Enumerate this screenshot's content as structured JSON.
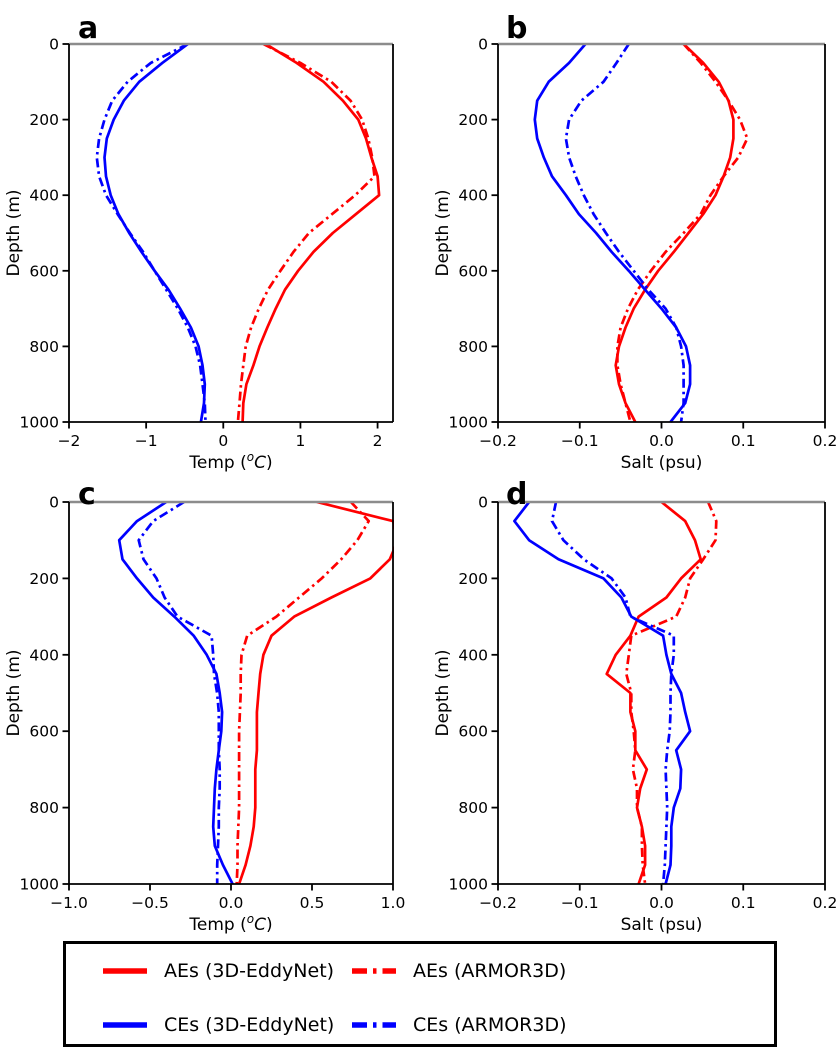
{
  "figure": {
    "background": "#ffffff",
    "colors": {
      "ae": "#ff0000",
      "ce": "#0000ff",
      "surface_line": "#8c8c8c",
      "spine": "#000000"
    },
    "legend": {
      "entries": [
        {
          "label": "AEs (3D-EddyNet)",
          "color": "#ff0000",
          "style": "solid"
        },
        {
          "label": "AEs (ARMOR3D)",
          "color": "#ff0000",
          "style": "dashdot"
        },
        {
          "label": "CEs (3D-EddyNet)",
          "color": "#0000ff",
          "style": "solid"
        },
        {
          "label": "CEs (ARMOR3D)",
          "color": "#0000ff",
          "style": "dashdot"
        }
      ]
    }
  },
  "chart_data": [
    {
      "panel": "a",
      "type": "line",
      "xlabel": "Temp (°C)",
      "xlabel_math": {
        "prefix": "Temp (",
        "sup": "o",
        "italic": "C",
        "suffix": ")"
      },
      "ylabel": "Depth (m)",
      "xlim": [
        -2.0,
        2.2
      ],
      "ylim": [
        0,
        1000
      ],
      "y_inverted": true,
      "grid": false,
      "xtick_values": [
        -2,
        -1,
        0,
        1,
        2
      ],
      "xtick_labels": [
        "−2",
        "−1",
        "0",
        "1",
        "2"
      ],
      "ytick_values": [
        0,
        200,
        400,
        600,
        800,
        1000
      ],
      "ytick_labels": [
        "0",
        "200",
        "400",
        "600",
        "800",
        "1000"
      ],
      "depths": [
        0,
        50,
        100,
        150,
        200,
        250,
        300,
        350,
        400,
        450,
        500,
        550,
        600,
        650,
        700,
        750,
        800,
        850,
        900,
        950,
        1000
      ],
      "series": [
        {
          "name": "AEs (3D-EddyNet)",
          "color": "#ff0000",
          "style": "solid",
          "values": [
            0.55,
            0.95,
            1.3,
            1.55,
            1.75,
            1.85,
            1.92,
            2.0,
            2.02,
            1.72,
            1.42,
            1.17,
            0.97,
            0.8,
            0.68,
            0.57,
            0.47,
            0.39,
            0.3,
            0.26,
            0.25
          ]
        },
        {
          "name": "AEs (ARMOR3D)",
          "color": "#ff0000",
          "style": "dashdot",
          "values": [
            0.52,
            1.0,
            1.4,
            1.65,
            1.8,
            1.88,
            1.93,
            1.96,
            1.71,
            1.41,
            1.11,
            0.91,
            0.74,
            0.58,
            0.46,
            0.36,
            0.29,
            0.26,
            0.23,
            0.21,
            0.19
          ]
        },
        {
          "name": "CEs (3D-EddyNet)",
          "color": "#0000ff",
          "style": "solid",
          "values": [
            -0.46,
            -0.79,
            -1.09,
            -1.29,
            -1.42,
            -1.51,
            -1.54,
            -1.52,
            -1.46,
            -1.36,
            -1.22,
            -1.06,
            -0.89,
            -0.71,
            -0.56,
            -0.42,
            -0.32,
            -0.27,
            -0.24,
            -0.25,
            -0.29
          ]
        },
        {
          "name": "CEs (ARMOR3D)",
          "color": "#0000ff",
          "style": "dashdot",
          "values": [
            -0.46,
            -0.94,
            -1.24,
            -1.44,
            -1.54,
            -1.61,
            -1.64,
            -1.61,
            -1.52,
            -1.37,
            -1.21,
            -1.04,
            -0.89,
            -0.74,
            -0.59,
            -0.46,
            -0.36,
            -0.3,
            -0.27,
            -0.24,
            -0.23
          ]
        }
      ]
    },
    {
      "panel": "b",
      "type": "line",
      "xlabel": "Salt (psu)",
      "ylabel": "Depth (m)",
      "xlim": [
        -0.2,
        0.2
      ],
      "ylim": [
        0,
        1000
      ],
      "y_inverted": true,
      "grid": false,
      "xtick_values": [
        -0.2,
        -0.1,
        0.0,
        0.1,
        0.2
      ],
      "xtick_labels": [
        "−0.2",
        "−0.1",
        "0.0",
        "0.1",
        "0.2"
      ],
      "ytick_values": [
        0,
        200,
        400,
        600,
        800,
        1000
      ],
      "ytick_labels": [
        "0",
        "200",
        "400",
        "600",
        "800",
        "1000"
      ],
      "depths": [
        0,
        50,
        100,
        150,
        200,
        250,
        300,
        350,
        400,
        450,
        500,
        550,
        600,
        650,
        700,
        750,
        800,
        850,
        900,
        950,
        1000
      ],
      "series": [
        {
          "name": "AEs (3D-EddyNet)",
          "color": "#ff0000",
          "style": "solid",
          "values": [
            0.027,
            0.051,
            0.07,
            0.082,
            0.088,
            0.088,
            0.084,
            0.076,
            0.066,
            0.051,
            0.033,
            0.015,
            -0.004,
            -0.02,
            -0.034,
            -0.044,
            -0.052,
            -0.056,
            -0.052,
            -0.044,
            -0.032
          ]
        },
        {
          "name": "AEs (ARMOR3D)",
          "color": "#ff0000",
          "style": "dashdot",
          "values": [
            0.027,
            0.048,
            0.066,
            0.082,
            0.096,
            0.105,
            0.094,
            0.076,
            0.06,
            0.048,
            0.027,
            0.005,
            -0.013,
            -0.029,
            -0.041,
            -0.05,
            -0.054,
            -0.054,
            -0.05,
            -0.044,
            -0.038
          ]
        },
        {
          "name": "CEs (3D-EddyNet)",
          "color": "#0000ff",
          "style": "solid",
          "values": [
            -0.093,
            -0.113,
            -0.138,
            -0.152,
            -0.155,
            -0.152,
            -0.144,
            -0.134,
            -0.117,
            -0.101,
            -0.08,
            -0.061,
            -0.04,
            -0.02,
            0.0,
            0.018,
            0.03,
            0.035,
            0.035,
            0.029,
            0.011
          ]
        },
        {
          "name": "CEs (ARMOR3D)",
          "color": "#0000ff",
          "style": "dashdot",
          "values": [
            -0.04,
            -0.055,
            -0.071,
            -0.098,
            -0.113,
            -0.117,
            -0.113,
            -0.105,
            -0.095,
            -0.083,
            -0.068,
            -0.052,
            -0.034,
            -0.016,
            0.005,
            0.018,
            0.024,
            0.027,
            0.027,
            0.027,
            0.024
          ]
        }
      ]
    },
    {
      "panel": "c",
      "type": "line",
      "xlabel": "Temp (°C)",
      "xlabel_math": {
        "prefix": "Temp (",
        "sup": "o",
        "italic": "C",
        "suffix": ")"
      },
      "ylabel": "Depth (m)",
      "xlim": [
        -1.0,
        1.0
      ],
      "ylim": [
        0,
        1000
      ],
      "y_inverted": true,
      "grid": false,
      "xtick_values": [
        -1.0,
        -0.5,
        0.0,
        0.5,
        1.0
      ],
      "xtick_labels": [
        "−1.0",
        "−0.5",
        "0.0",
        "0.5",
        "1.0"
      ],
      "ytick_values": [
        0,
        200,
        400,
        600,
        800,
        1000
      ],
      "ytick_labels": [
        "0",
        "200",
        "400",
        "600",
        "800",
        "1000"
      ],
      "depths": [
        0,
        50,
        100,
        150,
        200,
        250,
        300,
        350,
        400,
        450,
        500,
        550,
        600,
        650,
        700,
        750,
        800,
        850,
        900,
        950,
        1000
      ],
      "series": [
        {
          "name": "AEs (3D-EddyNet)",
          "color": "#ff0000",
          "style": "solid",
          "values": [
            0.53,
            1.0,
            1.03,
            0.98,
            0.86,
            0.62,
            0.39,
            0.25,
            0.2,
            0.18,
            0.17,
            0.16,
            0.16,
            0.16,
            0.15,
            0.15,
            0.15,
            0.14,
            0.12,
            0.09,
            0.05
          ]
        },
        {
          "name": "AEs (ARMOR3D)",
          "color": "#ff0000",
          "style": "dashdot",
          "values": [
            0.74,
            0.85,
            0.78,
            0.68,
            0.56,
            0.42,
            0.28,
            0.1,
            0.065,
            0.06,
            0.06,
            0.055,
            0.05,
            0.05,
            0.05,
            0.05,
            0.05,
            0.045,
            0.04,
            0.04,
            0.035
          ]
        },
        {
          "name": "CEs (3D-EddyNet)",
          "color": "#0000ff",
          "style": "solid",
          "values": [
            -0.4,
            -0.58,
            -0.69,
            -0.67,
            -0.58,
            -0.48,
            -0.35,
            -0.23,
            -0.15,
            -0.09,
            -0.07,
            -0.055,
            -0.06,
            -0.075,
            -0.09,
            -0.1,
            -0.105,
            -0.11,
            -0.1,
            -0.05,
            0.01
          ]
        },
        {
          "name": "CEs (ARMOR3D)",
          "color": "#0000ff",
          "style": "dashdot",
          "values": [
            -0.29,
            -0.48,
            -0.57,
            -0.54,
            -0.46,
            -0.41,
            -0.33,
            -0.12,
            -0.11,
            -0.105,
            -0.086,
            -0.075,
            -0.075,
            -0.075,
            -0.07,
            -0.07,
            -0.075,
            -0.075,
            -0.08,
            -0.085,
            -0.085
          ]
        }
      ]
    },
    {
      "panel": "d",
      "type": "line",
      "xlabel": "Salt (psu)",
      "ylabel": "Depth (m)",
      "xlim": [
        -0.2,
        0.2
      ],
      "ylim": [
        0,
        1000
      ],
      "y_inverted": true,
      "grid": false,
      "xtick_values": [
        -0.2,
        -0.1,
        0.0,
        0.1,
        0.2
      ],
      "xtick_labels": [
        "−0.2",
        "−0.1",
        "0.0",
        "0.1",
        "0.2"
      ],
      "ytick_values": [
        0,
        200,
        400,
        600,
        800,
        1000
      ],
      "ytick_labels": [
        "0",
        "200",
        "400",
        "600",
        "800",
        "1000"
      ],
      "depths": [
        0,
        50,
        100,
        150,
        200,
        250,
        300,
        350,
        400,
        450,
        500,
        550,
        600,
        650,
        700,
        750,
        800,
        850,
        900,
        950,
        1000
      ],
      "series": [
        {
          "name": "AEs (3D-EddyNet)",
          "color": "#ff0000",
          "style": "solid",
          "values": [
            0.0,
            0.029,
            0.041,
            0.048,
            0.024,
            0.006,
            -0.028,
            -0.038,
            -0.056,
            -0.067,
            -0.038,
            -0.038,
            -0.032,
            -0.032,
            -0.018,
            -0.026,
            -0.03,
            -0.024,
            -0.02,
            -0.02,
            -0.028
          ]
        },
        {
          "name": "AEs (ARMOR3D)",
          "color": "#ff0000",
          "style": "dashdot",
          "values": [
            0.057,
            0.067,
            0.066,
            0.051,
            0.035,
            0.029,
            0.018,
            -0.037,
            -0.04,
            -0.043,
            -0.037,
            -0.037,
            -0.034,
            -0.032,
            -0.035,
            -0.03,
            -0.03,
            -0.024,
            -0.024,
            -0.023,
            -0.02
          ]
        },
        {
          "name": "CEs (3D-EddyNet)",
          "color": "#0000ff",
          "style": "solid",
          "values": [
            -0.162,
            -0.18,
            -0.162,
            -0.126,
            -0.071,
            -0.049,
            -0.037,
            0.002,
            0.006,
            0.012,
            0.024,
            0.029,
            0.035,
            0.018,
            0.024,
            0.023,
            0.015,
            0.012,
            0.012,
            0.011,
            0.005
          ]
        },
        {
          "name": "CEs (ARMOR3D)",
          "color": "#0000ff",
          "style": "dashdot",
          "values": [
            -0.129,
            -0.134,
            -0.12,
            -0.095,
            -0.061,
            -0.044,
            -0.038,
            0.015,
            0.015,
            0.012,
            0.011,
            0.011,
            0.01,
            0.007,
            0.005,
            0.006,
            0.007,
            0.006,
            0.005,
            0.004,
            0.002
          ]
        }
      ]
    }
  ]
}
